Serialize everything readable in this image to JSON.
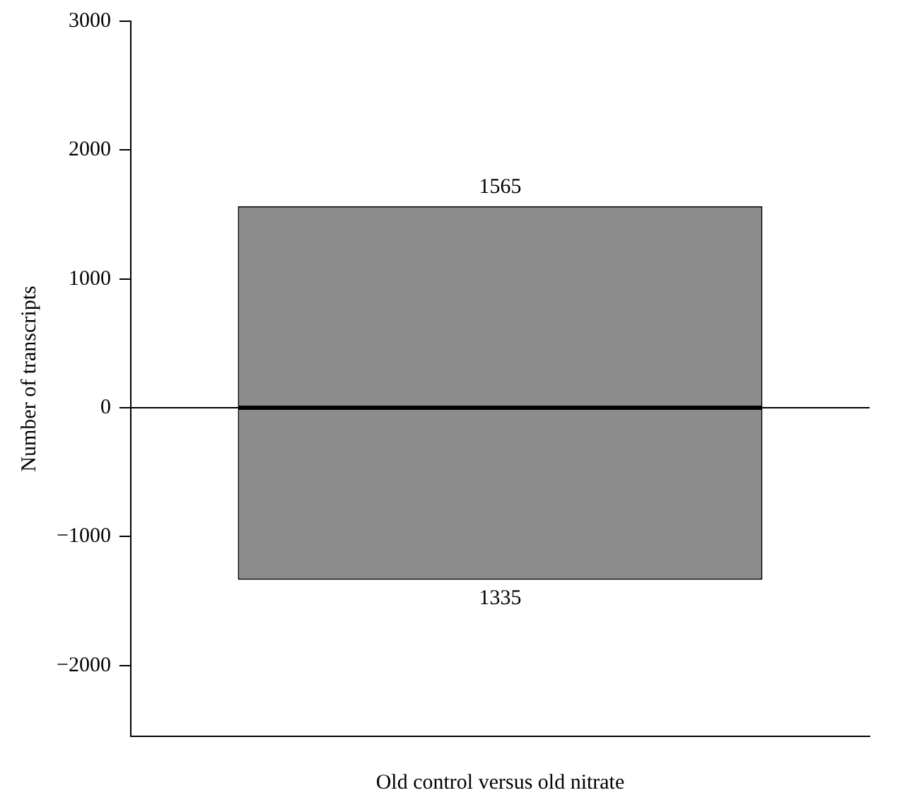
{
  "chart_data": {
    "type": "bar",
    "xlabel": "Old control versus old nitrate",
    "ylabel": "Number of transcripts",
    "categories": [
      null
    ],
    "stacked": true,
    "series": [
      {
        "color": "#8c8c8c",
        "values": [
          1565
        ]
      },
      {
        "color": "#8c8c8c",
        "values": [
          -1335
        ]
      }
    ],
    "annotations": [
      {
        "text": "1565",
        "y": 1565
      },
      {
        "text": "1335",
        "y": -1335
      }
    ],
    "ylim": [
      -2550,
      3000
    ],
    "yticks": [
      {
        "value": -2000,
        "label": "−2000"
      },
      {
        "value": -1000,
        "label": "−1000"
      },
      0,
      1000,
      2000,
      3000
    ],
    "ref_lines": [
      {
        "axis": "y",
        "value": 0,
        "color": "#000000"
      }
    ],
    "grid": false,
    "legend": false
  }
}
